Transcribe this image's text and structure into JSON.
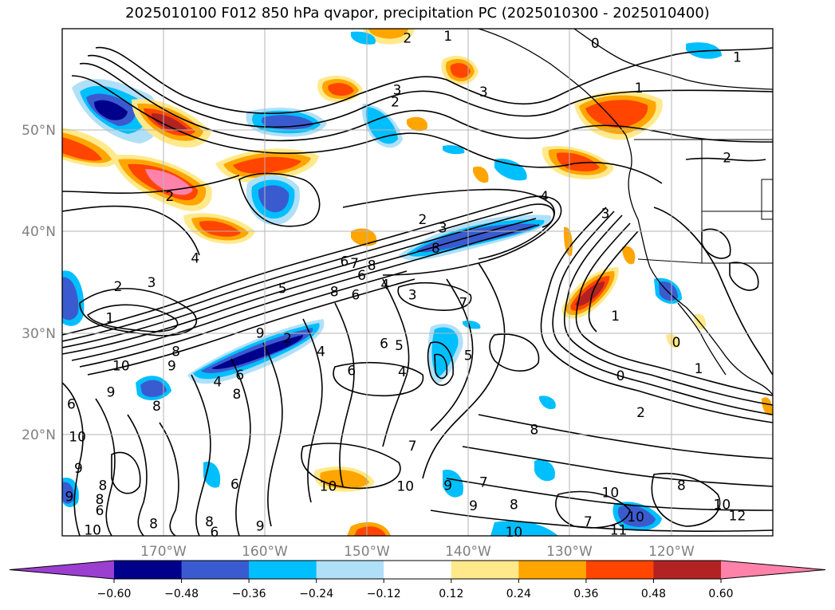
{
  "title": "2025010100 F012 850 hPa qvapor, precipitation PC (2025010300 - 2025010400)",
  "lat_labels": [
    "50°N",
    "40°N",
    "30°N",
    "20°N"
  ],
  "lon_labels": [
    "170°W",
    "160°W",
    "150°W",
    "140°W",
    "130°W",
    "120°W"
  ],
  "colorbar": {
    "ticks": [
      "−0.60",
      "−0.48",
      "−0.36",
      "−0.24",
      "−0.12",
      "0.12",
      "0.24",
      "0.36",
      "0.48",
      "0.60"
    ],
    "colors": [
      "#9b3fd1",
      "#00008b",
      "#3a5bd0",
      "#00bfff",
      "#b0e0f8",
      "#ffffff",
      "#ffe98a",
      "#ffa500",
      "#ff4500",
      "#b22222",
      "#ff82ab"
    ],
    "extend": "both"
  },
  "contour_labels": [
    {
      "text": "2",
      "lon": -146.0,
      "lat": 59.1
    },
    {
      "text": "1",
      "lon": -142.0,
      "lat": 59.3
    },
    {
      "text": "0",
      "lon": -127.5,
      "lat": 58.6
    },
    {
      "text": "1",
      "lon": -113.5,
      "lat": 57.2
    },
    {
      "text": "1",
      "lon": -123.2,
      "lat": 54.2
    },
    {
      "text": "3",
      "lon": -147.0,
      "lat": 54.0
    },
    {
      "text": "2",
      "lon": -147.2,
      "lat": 52.8
    },
    {
      "text": "3",
      "lon": -138.5,
      "lat": 53.8
    },
    {
      "text": "2",
      "lon": -114.5,
      "lat": 47.3
    },
    {
      "text": "2",
      "lon": -169.4,
      "lat": 43.5
    },
    {
      "text": "4",
      "lon": -132.5,
      "lat": 43.5
    },
    {
      "text": "3",
      "lon": -126.5,
      "lat": 41.8
    },
    {
      "text": "2",
      "lon": -144.5,
      "lat": 41.2
    },
    {
      "text": "3",
      "lon": -142.5,
      "lat": 40.4
    },
    {
      "text": "8",
      "lon": -143.2,
      "lat": 38.4
    },
    {
      "text": "4",
      "lon": -166.9,
      "lat": 37.4
    },
    {
      "text": "6",
      "lon": -152.2,
      "lat": 37.1
    },
    {
      "text": "7",
      "lon": -151.2,
      "lat": 36.9
    },
    {
      "text": "8",
      "lon": -149.5,
      "lat": 36.7
    },
    {
      "text": "6",
      "lon": -150.5,
      "lat": 35.7
    },
    {
      "text": "3",
      "lon": -171.2,
      "lat": 35.0
    },
    {
      "text": "2",
      "lon": -174.5,
      "lat": 34.6
    },
    {
      "text": "5",
      "lon": -158.3,
      "lat": 34.4
    },
    {
      "text": "8",
      "lon": -153.2,
      "lat": 34.1
    },
    {
      "text": "6",
      "lon": -151.1,
      "lat": 33.8
    },
    {
      "text": "4",
      "lon": -148.2,
      "lat": 34.8
    },
    {
      "text": "3",
      "lon": -145.5,
      "lat": 33.8
    },
    {
      "text": "7",
      "lon": -140.5,
      "lat": 33.0
    },
    {
      "text": "1",
      "lon": -125.5,
      "lat": 31.7
    },
    {
      "text": "1",
      "lon": -175.3,
      "lat": 31.5
    },
    {
      "text": "9",
      "lon": -160.5,
      "lat": 30.0
    },
    {
      "text": "2",
      "lon": -157.8,
      "lat": 29.5
    },
    {
      "text": "8",
      "lon": -168.8,
      "lat": 28.2
    },
    {
      "text": "4",
      "lon": -154.5,
      "lat": 28.2
    },
    {
      "text": "6",
      "lon": -148.3,
      "lat": 29.0
    },
    {
      "text": "5",
      "lon": -146.8,
      "lat": 28.8
    },
    {
      "text": "5",
      "lon": -140.0,
      "lat": 27.8
    },
    {
      "text": "0",
      "lon": -119.5,
      "lat": 29.1
    },
    {
      "text": "10",
      "lon": -174.2,
      "lat": 26.8
    },
    {
      "text": "9",
      "lon": -169.2,
      "lat": 26.8
    },
    {
      "text": "6",
      "lon": -162.5,
      "lat": 25.9
    },
    {
      "text": "4",
      "lon": -164.7,
      "lat": 25.2
    },
    {
      "text": "6",
      "lon": -151.5,
      "lat": 26.3
    },
    {
      "text": "4",
      "lon": -146.5,
      "lat": 26.2
    },
    {
      "text": "0",
      "lon": -125.0,
      "lat": 25.8
    },
    {
      "text": "1",
      "lon": -117.3,
      "lat": 26.5
    },
    {
      "text": "9",
      "lon": -175.2,
      "lat": 24.2
    },
    {
      "text": "8",
      "lon": -162.8,
      "lat": 24.0
    },
    {
      "text": "8",
      "lon": -170.7,
      "lat": 22.8
    },
    {
      "text": "6",
      "lon": -179.1,
      "lat": 23.0
    },
    {
      "text": "2",
      "lon": -123.0,
      "lat": 22.2
    },
    {
      "text": "10",
      "lon": -178.5,
      "lat": 19.8
    },
    {
      "text": "8",
      "lon": -133.5,
      "lat": 20.5
    },
    {
      "text": "7",
      "lon": -145.5,
      "lat": 18.9
    },
    {
      "text": "9",
      "lon": -178.4,
      "lat": 16.7
    },
    {
      "text": "8",
      "lon": -176.0,
      "lat": 15.0
    },
    {
      "text": "6",
      "lon": -163.0,
      "lat": 15.1
    },
    {
      "text": "10",
      "lon": -153.8,
      "lat": 14.9
    },
    {
      "text": "10",
      "lon": -146.2,
      "lat": 14.9
    },
    {
      "text": "9",
      "lon": -142.0,
      "lat": 15.0
    },
    {
      "text": "7",
      "lon": -138.5,
      "lat": 15.3
    },
    {
      "text": "10",
      "lon": -126.0,
      "lat": 14.3
    },
    {
      "text": "8",
      "lon": -119.0,
      "lat": 15.0
    },
    {
      "text": "8",
      "lon": -176.3,
      "lat": 13.6
    },
    {
      "text": "9",
      "lon": -179.3,
      "lat": 13.9
    },
    {
      "text": "6",
      "lon": -176.3,
      "lat": 12.5
    },
    {
      "text": "9",
      "lon": -139.5,
      "lat": 13.0
    },
    {
      "text": "8",
      "lon": -135.5,
      "lat": 13.1
    },
    {
      "text": "10",
      "lon": -115.0,
      "lat": 13.1
    },
    {
      "text": "12",
      "lon": -113.5,
      "lat": 12.0
    },
    {
      "text": "10",
      "lon": -123.5,
      "lat": 11.9
    },
    {
      "text": "7",
      "lon": -128.2,
      "lat": 11.4
    },
    {
      "text": "8",
      "lon": -165.5,
      "lat": 11.4
    },
    {
      "text": "10",
      "lon": -177.0,
      "lat": 10.6
    },
    {
      "text": "8",
      "lon": -171.0,
      "lat": 11.2
    },
    {
      "text": "9",
      "lon": -160.5,
      "lat": 11.0
    },
    {
      "text": "6",
      "lon": -165.0,
      "lat": 10.4
    },
    {
      "text": "10",
      "lon": -135.5,
      "lat": 10.4
    },
    {
      "text": "11",
      "lon": -125.2,
      "lat": 10.6
    }
  ]
}
